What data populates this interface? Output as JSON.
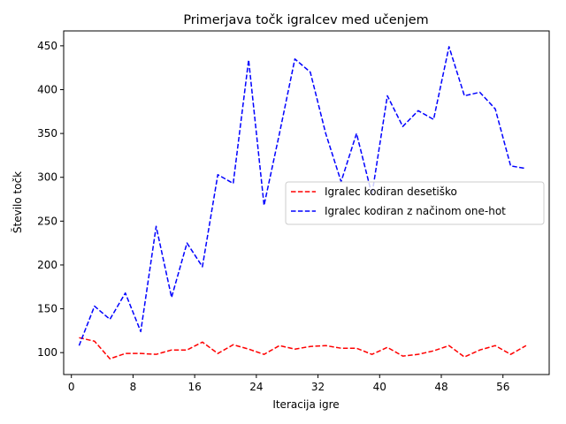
{
  "chart_data": {
    "type": "line",
    "title": "Primerjava točk igralcev med učenjem",
    "xlabel": "Iteracija igre",
    "ylabel": "Število točk",
    "xlim": [
      -1,
      62
    ],
    "ylim": [
      75,
      467
    ],
    "xticks": [
      0,
      8,
      16,
      24,
      32,
      40,
      48,
      56
    ],
    "yticks": [
      100,
      150,
      200,
      250,
      300,
      350,
      400,
      450
    ],
    "grid": false,
    "legend_position": "center-right",
    "x": [
      1,
      3,
      5,
      7,
      9,
      11,
      13,
      15,
      17,
      19,
      21,
      23,
      25,
      27,
      29,
      31,
      33,
      35,
      37,
      39,
      41,
      43,
      45,
      47,
      49,
      51,
      53,
      55,
      57,
      59
    ],
    "series": [
      {
        "name": "Igralec kodiran desetiško",
        "color": "#ff0000",
        "line_style": "dashed",
        "values": [
          117,
          113,
          93,
          99,
          99,
          98,
          103,
          103,
          112,
          99,
          109,
          104,
          98,
          108,
          104,
          107,
          108,
          105,
          105,
          98,
          106,
          96,
          98,
          102,
          108,
          95,
          103,
          108,
          98,
          108
        ]
      },
      {
        "name": "Igralec kodiran z načinom one-hot",
        "color": "#0000ff",
        "line_style": "dashed",
        "values": [
          108,
          153,
          138,
          168,
          124,
          244,
          163,
          225,
          198,
          303,
          293,
          434,
          268,
          350,
          435,
          420,
          350,
          295,
          350,
          280,
          393,
          358,
          376,
          366,
          449,
          393,
          397,
          378,
          313,
          310
        ]
      }
    ]
  }
}
